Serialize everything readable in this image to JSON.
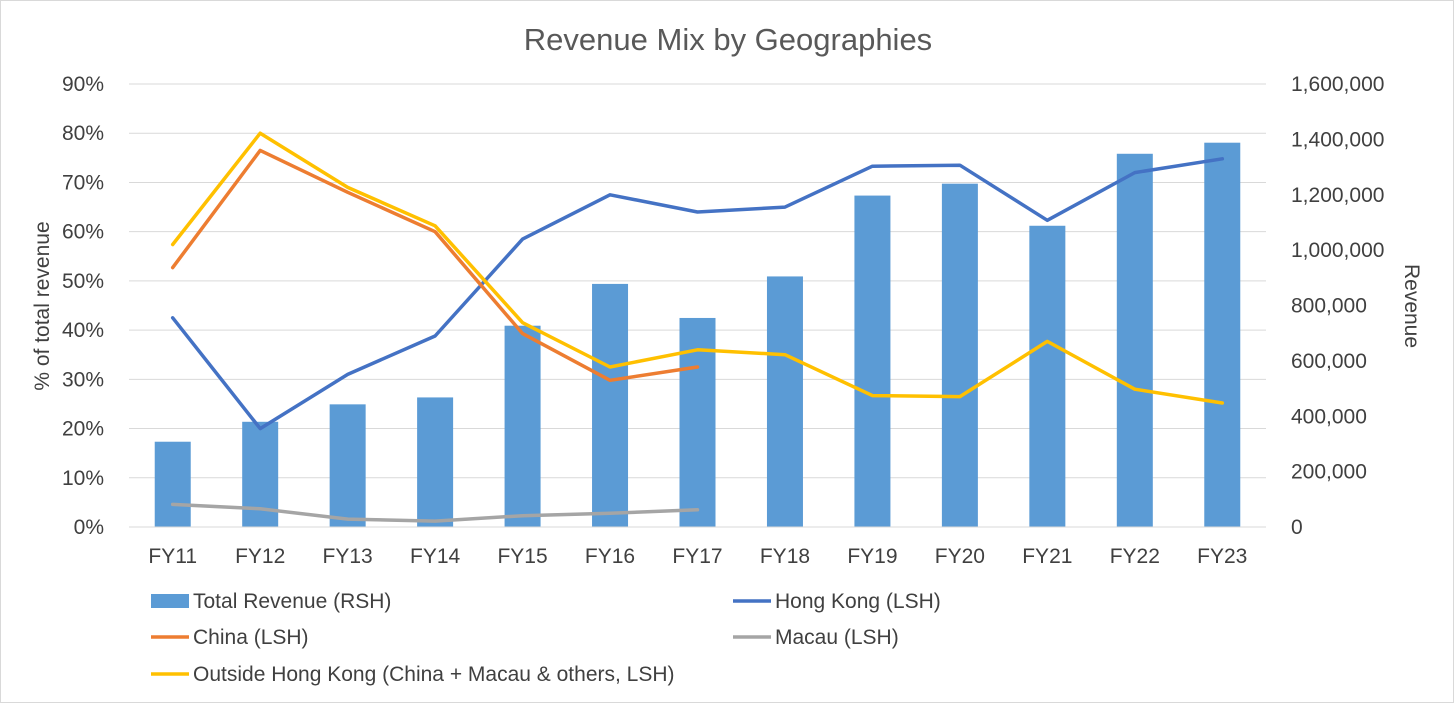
{
  "chart_data": {
    "type": "bar",
    "title": "Revenue Mix by Geographies",
    "categories": [
      "FY11",
      "FY12",
      "FY13",
      "FY14",
      "FY15",
      "FY16",
      "FY17",
      "FY18",
      "FY19",
      "FY20",
      "FY21",
      "FY22",
      "FY23"
    ],
    "ylabel": "% of total revenue",
    "y2label": "Revenue",
    "ylim": [
      0,
      90
    ],
    "y2lim": [
      0,
      1600000
    ],
    "yticks": [
      "0%",
      "10%",
      "20%",
      "30%",
      "40%",
      "50%",
      "60%",
      "70%",
      "80%",
      "90%"
    ],
    "y2ticks": [
      "0",
      "200,000",
      "400,000",
      "600,000",
      "800,000",
      "1,000,000",
      "1,200,000",
      "1,400,000",
      "1,600,000"
    ],
    "grid": true,
    "legend_position": "bottom",
    "bars": {
      "name": "Total Revenue (RSH)",
      "axis": "right",
      "color": "#5b9bd5",
      "values": [
        308000,
        380000,
        443000,
        468000,
        727000,
        878000,
        755000,
        905000,
        1197000,
        1240000,
        1088000,
        1348000,
        1388000
      ]
    },
    "series": [
      {
        "name": "Hong Kong (LSH)",
        "axis": "left",
        "color": "#4472c4",
        "values": [
          42.5,
          20.0,
          31.0,
          38.8,
          58.5,
          67.5,
          64.0,
          65.0,
          73.3,
          73.5,
          62.3,
          72.0,
          74.8
        ]
      },
      {
        "name": "China (LSH)",
        "axis": "left",
        "color": "#ed7d31",
        "values": [
          52.7,
          76.5,
          68.0,
          60.0,
          39.3,
          29.8,
          32.5,
          null,
          null,
          null,
          null,
          null,
          null
        ]
      },
      {
        "name": "Macau (LSH)",
        "axis": "left",
        "color": "#a5a5a5",
        "values": [
          4.6,
          3.7,
          1.6,
          1.2,
          2.3,
          2.8,
          3.5,
          null,
          null,
          null,
          null,
          null,
          null
        ]
      },
      {
        "name": "Outside Hong Kong (China + Macau & others, LSH)",
        "axis": "left",
        "color": "#ffc000",
        "values": [
          57.4,
          80.0,
          69.0,
          61.2,
          41.5,
          32.5,
          36.0,
          35.0,
          26.7,
          26.5,
          37.7,
          28.0,
          25.2
        ]
      }
    ]
  }
}
